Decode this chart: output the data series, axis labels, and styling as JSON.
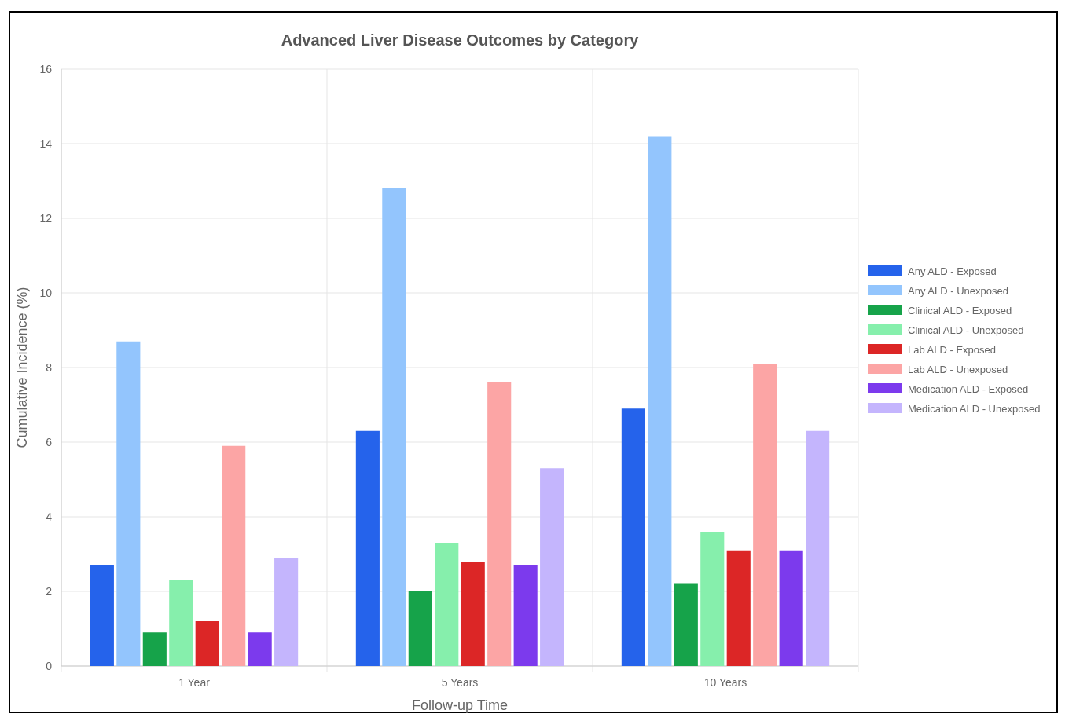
{
  "chart_data": {
    "type": "bar",
    "title": "Advanced Liver Disease Outcomes by Category",
    "xlabel": "Follow-up Time",
    "ylabel": "Cumulative Incidence (%)",
    "categories": [
      "1 Year",
      "5 Years",
      "10 Years"
    ],
    "series": [
      {
        "name": "Any ALD - Exposed",
        "color": "#2563eb",
        "values": [
          2.7,
          6.3,
          6.9
        ]
      },
      {
        "name": "Any ALD - Unexposed",
        "color": "#93c5fd",
        "values": [
          8.7,
          12.8,
          14.2
        ]
      },
      {
        "name": "Clinical ALD - Exposed",
        "color": "#16a34a",
        "values": [
          0.9,
          2.0,
          2.2
        ]
      },
      {
        "name": "Clinical ALD - Unexposed",
        "color": "#86efac",
        "values": [
          2.3,
          3.3,
          3.6
        ]
      },
      {
        "name": "Lab ALD - Exposed",
        "color": "#dc2626",
        "values": [
          1.2,
          2.8,
          3.1
        ]
      },
      {
        "name": "Lab ALD - Unexposed",
        "color": "#fca5a5",
        "values": [
          5.9,
          7.6,
          8.1
        ]
      },
      {
        "name": "Medication ALD - Exposed",
        "color": "#7c3aed",
        "values": [
          0.9,
          2.7,
          3.1
        ]
      },
      {
        "name": "Medication ALD - Unexposed",
        "color": "#c4b5fd",
        "values": [
          2.9,
          5.3,
          6.3
        ]
      }
    ],
    "ylim": [
      0,
      16
    ],
    "yticks": [
      0,
      2,
      4,
      6,
      8,
      10,
      12,
      14,
      16
    ],
    "grid": true,
    "legend": "right"
  }
}
